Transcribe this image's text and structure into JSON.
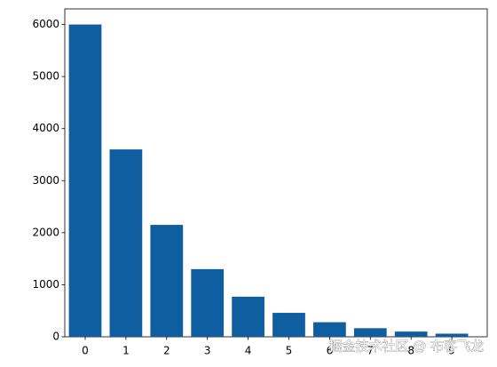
{
  "chart_data": {
    "type": "bar",
    "categories": [
      "0",
      "1",
      "2",
      "3",
      "4",
      "5",
      "6",
      "7",
      "8",
      "9"
    ],
    "values": [
      6000,
      3600,
      2150,
      1300,
      770,
      460,
      280,
      165,
      100,
      60
    ],
    "color": "#0f5fa0",
    "ylim": [
      0,
      6300
    ],
    "yticks": [
      0,
      1000,
      2000,
      3000,
      4000,
      5000,
      6000
    ],
    "watermark": "掘金技术社区 @ 布客飞龙"
  }
}
